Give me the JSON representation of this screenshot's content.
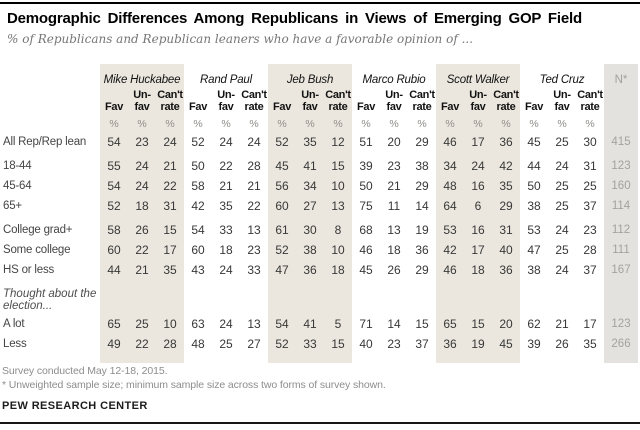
{
  "header": {
    "title": "Demographic Differences Among Republicans in Views of Emerging GOP Field",
    "subtitle": "% of Republicans and Republican leaners who have a favorable opinion of ..."
  },
  "colors": {
    "group_shade": "#ebe7de",
    "n_shade": "#e3e2df",
    "n_text": "#a3a29d"
  },
  "chart_data": {
    "type": "table",
    "title": "Demographic Differences Among Republicans in Views of Emerging GOP Field",
    "candidates": [
      "Mike Huckabee",
      "Rand Paul",
      "Jeb Bush",
      "Marco Rubio",
      "Scott Walker",
      "Ted Cruz"
    ],
    "measures": [
      "Fav",
      "Unfav",
      "Can't rate"
    ],
    "rows": [
      {
        "label": "All Rep/Rep lean",
        "values": [
          54,
          23,
          24,
          52,
          24,
          24,
          52,
          35,
          12,
          51,
          20,
          29,
          46,
          17,
          36,
          45,
          25,
          30
        ],
        "n": 415
      },
      {
        "label": "18-44",
        "values": [
          55,
          24,
          21,
          50,
          22,
          28,
          45,
          41,
          15,
          39,
          23,
          38,
          34,
          24,
          42,
          44,
          24,
          31
        ],
        "n": 123
      },
      {
        "label": "45-64",
        "values": [
          54,
          24,
          22,
          58,
          21,
          21,
          56,
          34,
          10,
          50,
          21,
          29,
          48,
          16,
          35,
          50,
          25,
          25
        ],
        "n": 160
      },
      {
        "label": "65+",
        "values": [
          52,
          18,
          31,
          42,
          35,
          22,
          60,
          27,
          13,
          75,
          11,
          14,
          64,
          6,
          29,
          38,
          25,
          37
        ],
        "n": 114
      },
      {
        "label": "College grad+",
        "values": [
          58,
          26,
          15,
          54,
          33,
          13,
          61,
          30,
          8,
          68,
          13,
          19,
          53,
          16,
          31,
          53,
          24,
          23
        ],
        "n": 112
      },
      {
        "label": "Some college",
        "values": [
          60,
          22,
          17,
          60,
          18,
          23,
          52,
          38,
          10,
          46,
          18,
          36,
          42,
          17,
          40,
          47,
          25,
          28
        ],
        "n": 111
      },
      {
        "label": "HS or less",
        "values": [
          44,
          21,
          35,
          43,
          24,
          33,
          47,
          36,
          18,
          45,
          26,
          29,
          46,
          18,
          36,
          38,
          24,
          37
        ],
        "n": 167
      },
      {
        "label": "A lot",
        "values": [
          65,
          25,
          10,
          63,
          24,
          13,
          54,
          41,
          5,
          71,
          14,
          15,
          65,
          15,
          20,
          62,
          21,
          17
        ],
        "n": 123
      },
      {
        "label": "Less",
        "values": [
          49,
          22,
          28,
          48,
          25,
          27,
          52,
          33,
          15,
          40,
          23,
          37,
          36,
          19,
          45,
          39,
          26,
          35
        ],
        "n": 266
      }
    ]
  },
  "table": {
    "candidates": [
      "Mike Huckabee",
      "Rand Paul",
      "Jeb Bush",
      "Marco Rubio",
      "Scott Walker",
      "Ted Cruz"
    ],
    "sub_headers": [
      {
        "top": "",
        "bottom": "Fav"
      },
      {
        "top": "Un-",
        "bottom": "fav"
      },
      {
        "top": "Can't",
        "bottom": "rate"
      }
    ],
    "n_label": "N*",
    "percent_symbol": "%",
    "rows": [
      {
        "label": "All Rep/Rep lean",
        "values": [
          54,
          23,
          24,
          52,
          24,
          24,
          52,
          35,
          12,
          51,
          20,
          29,
          46,
          17,
          36,
          45,
          25,
          30
        ],
        "n": "415"
      },
      {
        "label": "18-44",
        "gap_before": true,
        "values": [
          55,
          24,
          21,
          50,
          22,
          28,
          45,
          41,
          15,
          39,
          23,
          38,
          34,
          24,
          42,
          44,
          24,
          31
        ],
        "n": "123"
      },
      {
        "label": "45-64",
        "values": [
          54,
          24,
          22,
          58,
          21,
          21,
          56,
          34,
          10,
          50,
          21,
          29,
          48,
          16,
          35,
          50,
          25,
          25
        ],
        "n": "160"
      },
      {
        "label": "65+",
        "values": [
          52,
          18,
          31,
          42,
          35,
          22,
          60,
          27,
          13,
          75,
          11,
          14,
          64,
          6,
          29,
          38,
          25,
          37
        ],
        "n": "114"
      },
      {
        "label": "College grad+",
        "gap_before": true,
        "values": [
          58,
          26,
          15,
          54,
          33,
          13,
          61,
          30,
          8,
          68,
          13,
          19,
          53,
          16,
          31,
          53,
          24,
          23
        ],
        "n": "112"
      },
      {
        "label": "Some college",
        "values": [
          60,
          22,
          17,
          60,
          18,
          23,
          52,
          38,
          10,
          46,
          18,
          36,
          42,
          17,
          40,
          47,
          25,
          28
        ],
        "n": "111"
      },
      {
        "label": "HS or less",
        "values": [
          44,
          21,
          35,
          43,
          24,
          33,
          47,
          36,
          18,
          45,
          26,
          29,
          46,
          18,
          36,
          38,
          24,
          37
        ],
        "n": "167"
      },
      {
        "label": "Thought about the election...",
        "type": "section",
        "gap_before": true
      },
      {
        "label": "A lot",
        "values": [
          65,
          25,
          10,
          63,
          24,
          13,
          54,
          41,
          5,
          71,
          14,
          15,
          65,
          15,
          20,
          62,
          21,
          17
        ],
        "n": "123"
      },
      {
        "label": "Less",
        "values": [
          49,
          22,
          28,
          48,
          25,
          27,
          52,
          33,
          15,
          40,
          23,
          37,
          36,
          19,
          45,
          39,
          26,
          35
        ],
        "n": "266"
      }
    ]
  },
  "footer": {
    "note1": "Survey conducted May 12-18, 2015.",
    "note2": "* Unweighted sample size; minimum sample size across two forms of survey shown.",
    "source": "PEW RESEARCH CENTER"
  }
}
